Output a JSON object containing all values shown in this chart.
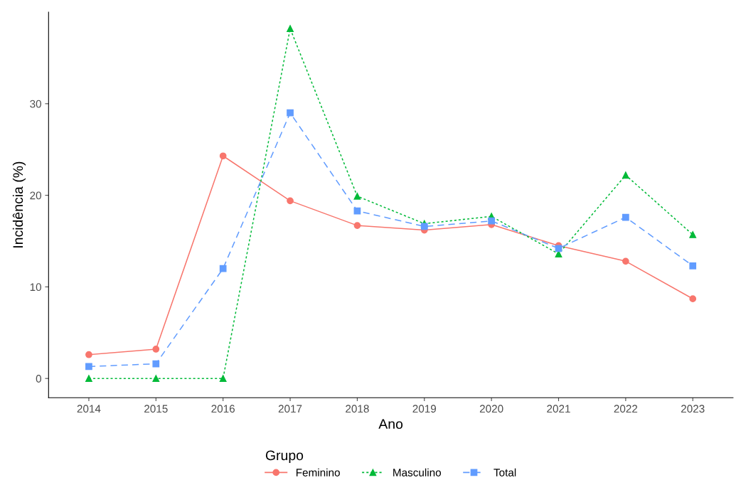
{
  "chart_data": {
    "type": "line",
    "xlabel": "Ano",
    "ylabel": "Incidência (%)",
    "legend_title": "Grupo",
    "legend": "bottom",
    "grid": false,
    "categories": [
      "2014",
      "2015",
      "2016",
      "2017",
      "2018",
      "2019",
      "2020",
      "2021",
      "2022",
      "2023"
    ],
    "ylim": [
      -2.1,
      40
    ],
    "yticks": [
      0,
      10,
      20,
      30
    ],
    "series": [
      {
        "name": "Feminino",
        "color": "#f8766d",
        "marker": "circle",
        "line_style": "solid",
        "values": [
          2.6,
          3.2,
          24.3,
          19.4,
          16.7,
          16.2,
          16.8,
          14.5,
          12.8,
          8.7
        ]
      },
      {
        "name": "Masculino",
        "color": "#00ba38",
        "marker": "triangle",
        "line_style": "dotted",
        "values": [
          0,
          0,
          0,
          38.2,
          19.9,
          16.9,
          17.7,
          13.6,
          22.2,
          15.7
        ]
      },
      {
        "name": "Total",
        "color": "#619cff",
        "marker": "square",
        "line_style": "dashed",
        "values": [
          1.3,
          1.6,
          12.0,
          29.0,
          18.3,
          16.6,
          17.2,
          14.2,
          17.6,
          12.3
        ]
      }
    ]
  }
}
